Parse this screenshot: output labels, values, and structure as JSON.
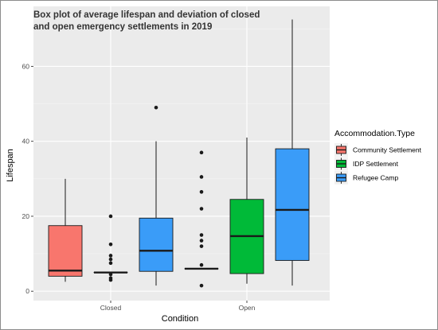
{
  "chart_data": {
    "type": "box",
    "title_lines": [
      "Box plot of average lifespan and deviation of closed",
      "and open emergency settlements in 2019"
    ],
    "xlabel": "Condition",
    "ylabel": "Lifespan",
    "categories": [
      "Closed",
      "Open"
    ],
    "y_ticks": [
      0,
      20,
      40,
      60
    ],
    "ylim": [
      -2.5,
      76
    ],
    "grid": true,
    "legend": {
      "title": "Accommodation.Type",
      "placement": "right",
      "entries": [
        {
          "name": "Community Settlement",
          "color": "#F8766D"
        },
        {
          "name": "IDP Settlement",
          "color": "#00BA38"
        },
        {
          "name": "Refugee Camp",
          "color": "#3A9CF8"
        }
      ]
    },
    "series": [
      {
        "name": "Community Settlement",
        "color": "#F8766D",
        "boxes": [
          {
            "category": "Closed",
            "min": 2.5,
            "q1": 4,
            "median": 5.5,
            "q3": 17.5,
            "max": 30,
            "outliers": []
          },
          {
            "category": "Open",
            "min": 6,
            "q1": 6,
            "median": 6,
            "q3": 6,
            "max": 6,
            "outliers": [
              1.5,
              7,
              12,
              13.5,
              15,
              22,
              26.5,
              30.5,
              37
            ]
          }
        ]
      },
      {
        "name": "IDP Settlement",
        "color": "#00BA38",
        "boxes": [
          {
            "category": "Closed",
            "min": 5,
            "q1": 5,
            "median": 5,
            "q3": 5,
            "max": 5,
            "outliers": [
              3,
              3.5,
              4.5,
              7.5,
              8.5,
              9.5,
              12.5,
              20
            ]
          },
          {
            "category": "Open",
            "min": 2,
            "q1": 4.7,
            "median": 14.7,
            "q3": 24.5,
            "max": 41,
            "outliers": []
          }
        ]
      },
      {
        "name": "Refugee Camp",
        "color": "#3A9CF8",
        "boxes": [
          {
            "category": "Closed",
            "min": 1.5,
            "q1": 5.3,
            "median": 10.8,
            "q3": 19.5,
            "max": 40,
            "outliers": [
              49
            ]
          },
          {
            "category": "Open",
            "min": 1.5,
            "q1": 8.2,
            "median": 21.7,
            "q3": 38,
            "max": 72.5,
            "outliers": []
          }
        ]
      }
    ]
  }
}
